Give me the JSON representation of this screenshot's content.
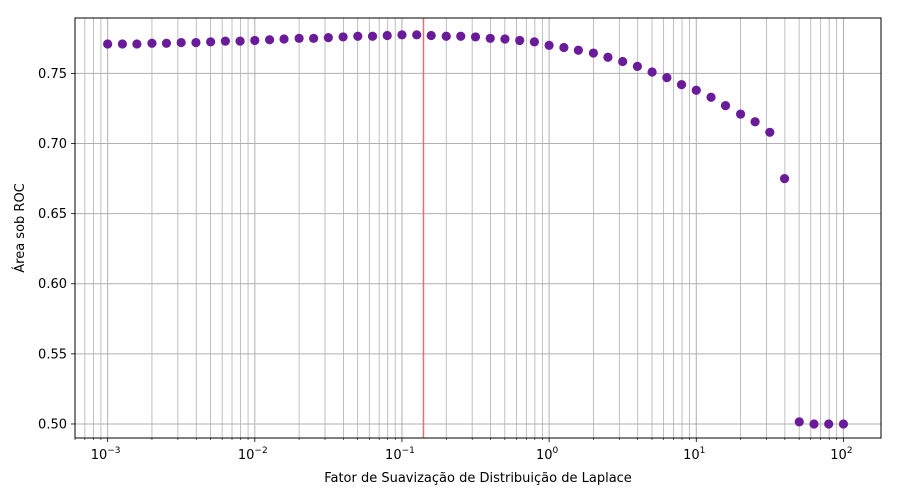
{
  "chart_data": {
    "type": "scatter",
    "title": "",
    "xlabel": "Fator de Suavização de Distribuição de Laplace",
    "ylabel": "Área sob ROC",
    "xscale": "log",
    "xlim": [
      0.0006,
      180
    ],
    "ylim": [
      0.49,
      0.7895
    ],
    "grid": true,
    "grid_minor_x": true,
    "legend": "none",
    "x_ticks": [
      {
        "value": 0.001,
        "base": "10",
        "exp": "−3"
      },
      {
        "value": 0.01,
        "base": "10",
        "exp": "−2"
      },
      {
        "value": 0.1,
        "base": "10",
        "exp": "−1"
      },
      {
        "value": 1,
        "base": "10",
        "exp": "0"
      },
      {
        "value": 10,
        "base": "10",
        "exp": "1"
      },
      {
        "value": 100,
        "base": "10",
        "exp": "2"
      }
    ],
    "y_ticks": [
      {
        "value": 0.5,
        "label": "0.50"
      },
      {
        "value": 0.55,
        "label": "0.55"
      },
      {
        "value": 0.6,
        "label": "0.60"
      },
      {
        "value": 0.65,
        "label": "0.65"
      },
      {
        "value": 0.7,
        "label": "0.70"
      },
      {
        "value": 0.75,
        "label": "0.75"
      }
    ],
    "vline": {
      "x": 0.14,
      "color": "#e8706d"
    },
    "point_color": "#6a1b9a",
    "x": [
      0.001,
      0.00126,
      0.00158,
      0.002,
      0.00251,
      0.00316,
      0.00398,
      0.00501,
      0.00631,
      0.00794,
      0.01,
      0.0126,
      0.0158,
      0.02,
      0.0251,
      0.0316,
      0.0398,
      0.0501,
      0.0631,
      0.0794,
      0.1,
      0.126,
      0.158,
      0.2,
      0.251,
      0.316,
      0.398,
      0.501,
      0.631,
      0.794,
      1.0,
      1.26,
      1.58,
      2.0,
      2.51,
      3.16,
      3.98,
      5.01,
      6.31,
      7.94,
      10.0,
      12.6,
      15.8,
      20.0,
      25.1,
      31.6,
      39.8,
      50.1,
      63.1,
      79.4,
      100
    ],
    "y": [
      0.771,
      0.771,
      0.771,
      0.7715,
      0.7715,
      0.772,
      0.772,
      0.7725,
      0.773,
      0.773,
      0.7735,
      0.774,
      0.7745,
      0.775,
      0.775,
      0.7755,
      0.776,
      0.7765,
      0.7765,
      0.777,
      0.7775,
      0.7775,
      0.777,
      0.7765,
      0.7765,
      0.776,
      0.775,
      0.7745,
      0.7735,
      0.7725,
      0.77,
      0.7685,
      0.7665,
      0.7645,
      0.7615,
      0.7585,
      0.755,
      0.751,
      0.747,
      0.742,
      0.738,
      0.733,
      0.727,
      0.721,
      0.7155,
      0.708,
      0.675,
      0.5015,
      0.5,
      0.5,
      0.5
    ]
  }
}
